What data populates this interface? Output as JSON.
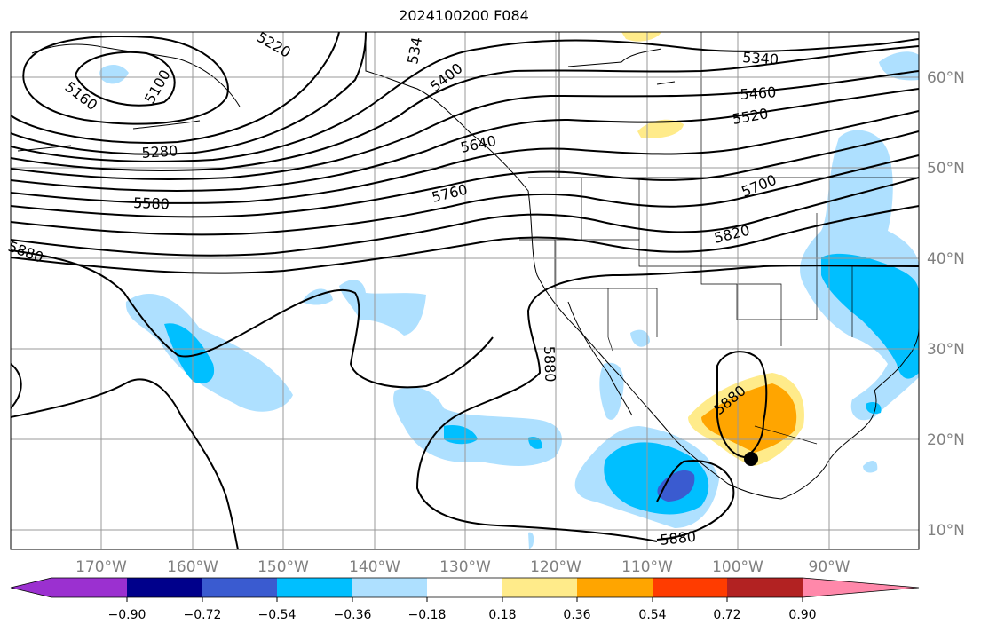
{
  "title": "2024100200 F084",
  "map": {
    "lon_labels": [
      "170°W",
      "160°W",
      "150°W",
      "140°W",
      "130°W",
      "120°W",
      "110°W",
      "100°W",
      "90°W"
    ],
    "lat_labels": [
      "60°N",
      "50°N",
      "40°N",
      "30°N",
      "20°N",
      "10°N"
    ],
    "contour_labels": [
      "5160",
      "5100",
      "5220",
      "534",
      "5400",
      "5280",
      "5340",
      "5460",
      "5520",
      "5640",
      "5580",
      "5760",
      "5700",
      "5820",
      "5880",
      "5880",
      "5880",
      "5880"
    ],
    "marker": "storm-center-dot"
  },
  "colorbar": {
    "tick_labels": [
      "−0.90",
      "−0.72",
      "−0.54",
      "−0.36",
      "−0.18",
      "0.18",
      "0.36",
      "0.54",
      "0.72",
      "0.90"
    ],
    "colors": [
      "#9b30d0",
      "#00008b",
      "#3a5bd0",
      "#00bfff",
      "#aee0ff",
      "#ffffff",
      "#ffeb8a",
      "#ffa500",
      "#ff3c00",
      "#b22222",
      "#ff88aa"
    ]
  }
}
